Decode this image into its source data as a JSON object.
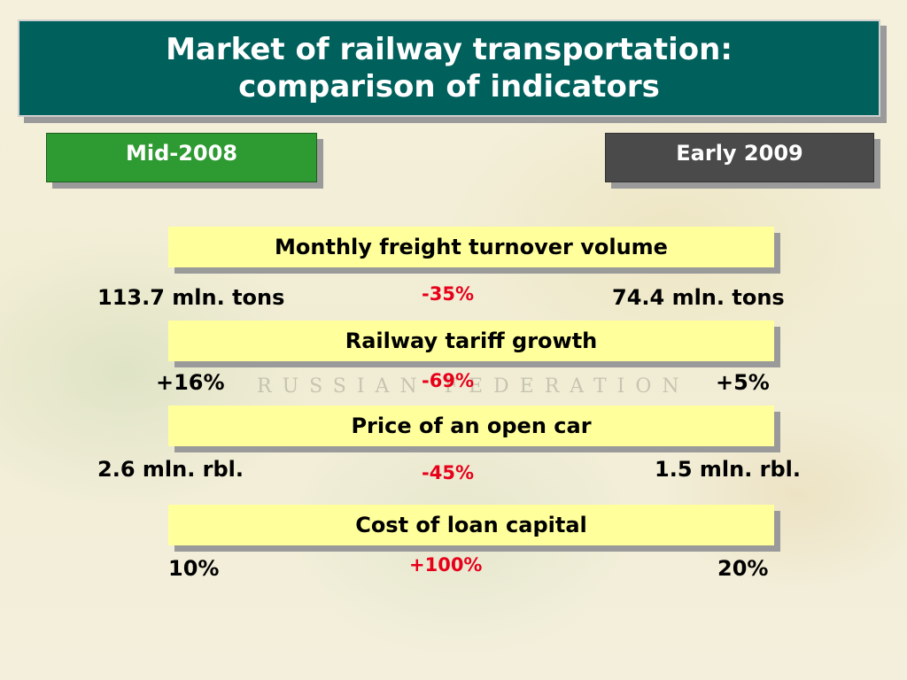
{
  "title": {
    "line1": "Market of railway transportation:",
    "line2": "comparison of indicators"
  },
  "periods": {
    "left": "Mid-2008",
    "right": "Early 2009"
  },
  "colors": {
    "title_bg": "#00605c",
    "left_period_bg": "#2e9a32",
    "right_period_bg": "#4a4a4a",
    "metric_bg": "#ffff9c",
    "change_text": "#e8001a"
  },
  "background_map_text": "RUSSIAN FEDERATION",
  "indicators": [
    {
      "label": "Monthly freight turnover volume",
      "left": "113.7 mln. tons",
      "change": "-35%",
      "right": "74.4 mln. tons"
    },
    {
      "label": "Railway tariff growth",
      "left": "+16%",
      "change": "-69%",
      "right": "+5%"
    },
    {
      "label": "Price of an open car",
      "left": "2.6 mln. rbl.",
      "change": "-45%",
      "right": "1.5 mln. rbl."
    },
    {
      "label": "Cost of loan capital",
      "left": "10%",
      "change": "+100%",
      "right": "20%"
    }
  ]
}
